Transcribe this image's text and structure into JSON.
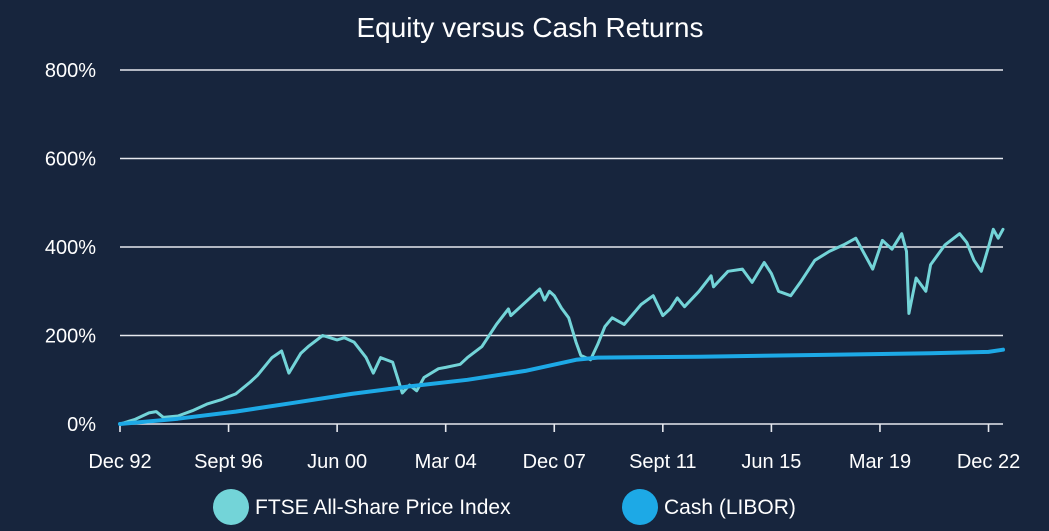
{
  "chart_data": {
    "type": "line",
    "title": "Equity versus Cash Returns",
    "xlabel": "",
    "ylabel": "",
    "x_range": [
      "1992-12",
      "2023-06"
    ],
    "ylim": [
      0,
      800
    ],
    "y_ticks": [
      0,
      200,
      400,
      600,
      800
    ],
    "y_tick_labels": [
      "0%",
      "200%",
      "400%",
      "600%",
      "800%"
    ],
    "x_ticks": [
      "1992-12",
      "1996-09",
      "2000-06",
      "2004-03",
      "2007-12",
      "2011-09",
      "2015-06",
      "2019-03",
      "2022-12"
    ],
    "x_tick_labels": [
      "Dec 92",
      "Sept 96",
      "Jun 00",
      "Mar 04",
      "Dec 07",
      "Sept 11",
      "Jun 15",
      "Mar 19",
      "Dec 22"
    ],
    "grid": "horizontal",
    "legend": "bottom",
    "background": "#17253d",
    "series": [
      {
        "name": "FTSE All-Share Price Index",
        "color": "#73d4d8",
        "points": [
          [
            "1992-12",
            0
          ],
          [
            "1993-06",
            10
          ],
          [
            "1993-12",
            25
          ],
          [
            "1994-03",
            28
          ],
          [
            "1994-06",
            15
          ],
          [
            "1994-12",
            18
          ],
          [
            "1995-06",
            30
          ],
          [
            "1995-12",
            45
          ],
          [
            "1996-06",
            55
          ],
          [
            "1996-09",
            62
          ],
          [
            "1996-12",
            68
          ],
          [
            "1997-06",
            95
          ],
          [
            "1997-09",
            110
          ],
          [
            "1998-03",
            150
          ],
          [
            "1998-07",
            165
          ],
          [
            "1998-10",
            115
          ],
          [
            "1999-03",
            160
          ],
          [
            "1999-06",
            175
          ],
          [
            "1999-12",
            200
          ],
          [
            "2000-03",
            195
          ],
          [
            "2000-06",
            190
          ],
          [
            "2000-09",
            195
          ],
          [
            "2001-01",
            185
          ],
          [
            "2001-06",
            150
          ],
          [
            "2001-09",
            115
          ],
          [
            "2001-12",
            150
          ],
          [
            "2002-05",
            140
          ],
          [
            "2002-09",
            70
          ],
          [
            "2002-12",
            88
          ],
          [
            "2003-03",
            75
          ],
          [
            "2003-06",
            105
          ],
          [
            "2003-12",
            125
          ],
          [
            "2004-03",
            128
          ],
          [
            "2004-09",
            135
          ],
          [
            "2004-12",
            150
          ],
          [
            "2005-06",
            175
          ],
          [
            "2005-12",
            225
          ],
          [
            "2006-05",
            260
          ],
          [
            "2006-06",
            245
          ],
          [
            "2006-12",
            275
          ],
          [
            "2007-06",
            305
          ],
          [
            "2007-08",
            280
          ],
          [
            "2007-10",
            300
          ],
          [
            "2007-12",
            290
          ],
          [
            "2008-03",
            262
          ],
          [
            "2008-06",
            240
          ],
          [
            "2008-09",
            185
          ],
          [
            "2008-11",
            155
          ],
          [
            "2009-03",
            145
          ],
          [
            "2009-06",
            180
          ],
          [
            "2009-09",
            220
          ],
          [
            "2009-12",
            240
          ],
          [
            "2010-05",
            225
          ],
          [
            "2010-12",
            270
          ],
          [
            "2011-05",
            290
          ],
          [
            "2011-09",
            245
          ],
          [
            "2011-12",
            260
          ],
          [
            "2012-03",
            285
          ],
          [
            "2012-06",
            265
          ],
          [
            "2012-12",
            300
          ],
          [
            "2013-05",
            335
          ],
          [
            "2013-06",
            310
          ],
          [
            "2013-12",
            345
          ],
          [
            "2014-06",
            350
          ],
          [
            "2014-10",
            320
          ],
          [
            "2015-03",
            365
          ],
          [
            "2015-06",
            340
          ],
          [
            "2015-09",
            300
          ],
          [
            "2016-02",
            290
          ],
          [
            "2016-06",
            320
          ],
          [
            "2016-12",
            370
          ],
          [
            "2017-06",
            390
          ],
          [
            "2017-12",
            405
          ],
          [
            "2018-05",
            420
          ],
          [
            "2018-12",
            350
          ],
          [
            "2019-04",
            415
          ],
          [
            "2019-08",
            395
          ],
          [
            "2019-12",
            430
          ],
          [
            "2020-02",
            390
          ],
          [
            "2020-03",
            250
          ],
          [
            "2020-06",
            330
          ],
          [
            "2020-10",
            300
          ],
          [
            "2020-12",
            360
          ],
          [
            "2021-06",
            405
          ],
          [
            "2021-12",
            430
          ],
          [
            "2022-03",
            410
          ],
          [
            "2022-06",
            370
          ],
          [
            "2022-09",
            345
          ],
          [
            "2022-12",
            400
          ],
          [
            "2023-02",
            440
          ],
          [
            "2023-04",
            420
          ],
          [
            "2023-06",
            440
          ]
        ]
      },
      {
        "name": "Cash (LIBOR)",
        "color": "#1da9e6",
        "points": [
          [
            "1992-12",
            0
          ],
          [
            "1994-12",
            12
          ],
          [
            "1996-12",
            28
          ],
          [
            "1998-12",
            48
          ],
          [
            "2000-12",
            68
          ],
          [
            "2002-12",
            85
          ],
          [
            "2004-12",
            100
          ],
          [
            "2006-12",
            120
          ],
          [
            "2008-09",
            145
          ],
          [
            "2009-06",
            150
          ],
          [
            "2012-12",
            152
          ],
          [
            "2016-12",
            156
          ],
          [
            "2020-12",
            160
          ],
          [
            "2022-12",
            163
          ],
          [
            "2023-06",
            168
          ]
        ]
      }
    ]
  }
}
